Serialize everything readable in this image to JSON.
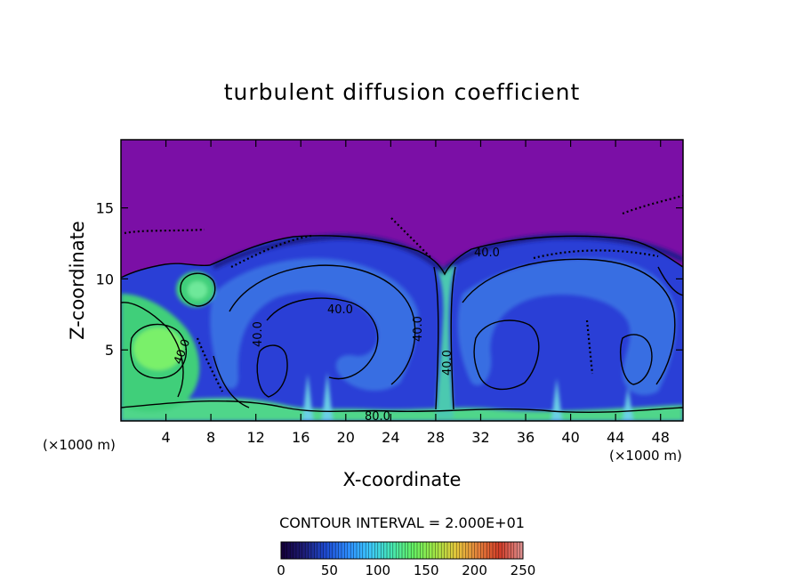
{
  "chart_data": {
    "type": "heatmap",
    "title": "turbulent diffusion coefficient",
    "xlabel": "X-coordinate",
    "ylabel": "Z-coordinate",
    "x_unit": "(×1000 m)",
    "y_unit": "(×1000 m)",
    "x_ticks": [
      4,
      8,
      12,
      16,
      20,
      24,
      28,
      32,
      36,
      40,
      44,
      48
    ],
    "y_ticks": [
      5,
      10,
      15
    ],
    "xlim": [
      0,
      50
    ],
    "ylim": [
      0,
      19.8
    ],
    "contour_interval_text": "CONTOUR INTERVAL = 2.000E+01",
    "contour_interval": 20,
    "contour_labels": [
      {
        "text": "40.0",
        "x": 18.7,
        "y": 8.2
      },
      {
        "text": "40.0",
        "x": 12.9,
        "y": 5.7
      },
      {
        "text": "40.0",
        "x": 27.1,
        "y": 6.0
      },
      {
        "text": "40.0",
        "x": 35.6,
        "y": 11.8
      },
      {
        "text": "40.0",
        "x": 29.7,
        "y": 3.6
      },
      {
        "text": "40.0",
        "x": 6.2,
        "y": 4.5
      },
      {
        "text": "80.0",
        "x": 23.0,
        "y": 0.3
      }
    ],
    "colorbar": {
      "ticks": [
        0,
        50,
        100,
        150,
        200,
        250
      ],
      "range": [
        0,
        250
      ],
      "colors": [
        "#14003a",
        "#1e1e78",
        "#1e4bd2",
        "#2d8cff",
        "#3cc8ff",
        "#46e6b4",
        "#64f064",
        "#a0e646",
        "#e6c83c",
        "#e6823c",
        "#d23c28",
        "#dc8c8c"
      ]
    },
    "colors": {
      "background_field": "#7b0fa6",
      "low_field": "#1f2fc8",
      "mid_field": "#3e8ae8",
      "high_field": "#4fe27a",
      "contour_line": "#000000"
    }
  }
}
